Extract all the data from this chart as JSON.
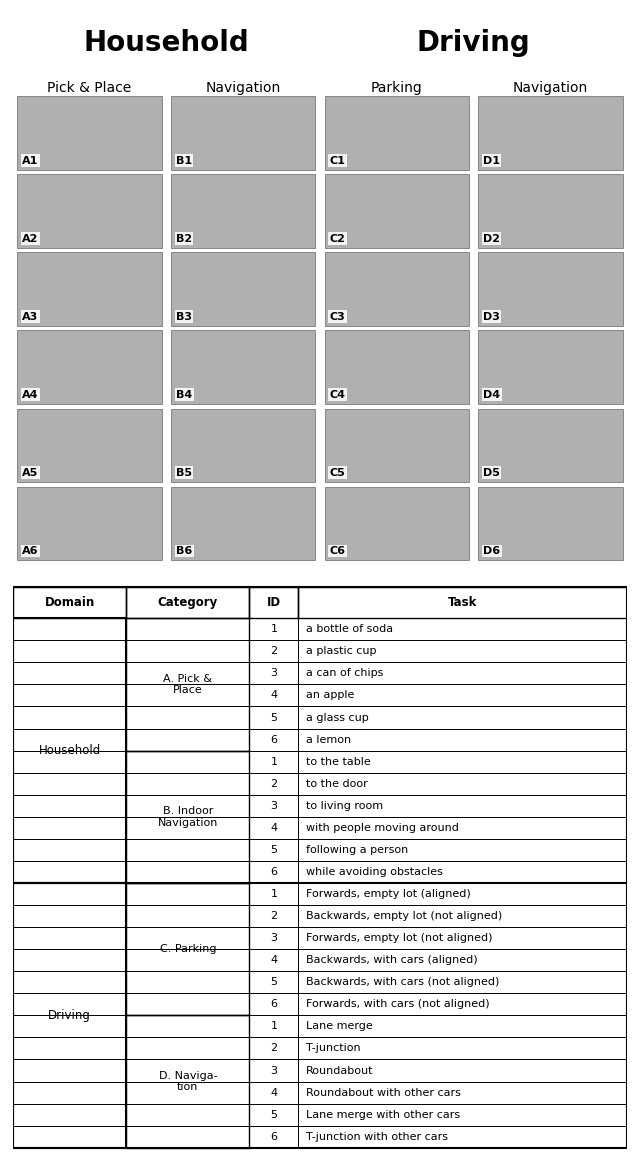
{
  "title_household": "Household",
  "title_driving": "Driving",
  "col_headers": [
    "Pick & Place",
    "Navigation",
    "Parking",
    "Navigation"
  ],
  "img_labels": [
    [
      "A1",
      "B1",
      "C1",
      "D1"
    ],
    [
      "A2",
      "B2",
      "C2",
      "D2"
    ],
    [
      "A3",
      "B3",
      "C3",
      "D3"
    ],
    [
      "A4",
      "B4",
      "C4",
      "D4"
    ],
    [
      "A5",
      "B5",
      "C5",
      "D5"
    ],
    [
      "A6",
      "B6",
      "C6",
      "D6"
    ]
  ],
  "table_headers": [
    "Domain",
    "Category",
    "ID",
    "Task"
  ],
  "table_data": [
    [
      "Household",
      "A. Pick &\nPlace",
      "1",
      "a bottle of soda"
    ],
    [
      "",
      "",
      "2",
      "a plastic cup"
    ],
    [
      "",
      "",
      "3",
      "a can of chips"
    ],
    [
      "",
      "",
      "4",
      "an apple"
    ],
    [
      "",
      "",
      "5",
      "a glass cup"
    ],
    [
      "",
      "",
      "6",
      "a lemon"
    ],
    [
      "",
      "B. Indoor\nNavigation",
      "1",
      "to the table"
    ],
    [
      "",
      "",
      "2",
      "to the door"
    ],
    [
      "",
      "",
      "3",
      "to living room"
    ],
    [
      "",
      "",
      "4",
      "with people moving around"
    ],
    [
      "",
      "",
      "5",
      "following a person"
    ],
    [
      "",
      "",
      "6",
      "while avoiding obstacles"
    ],
    [
      "Driving",
      "C. Parking",
      "1",
      "Forwards, empty lot (aligned)"
    ],
    [
      "",
      "",
      "2",
      "Backwards, empty lot (not aligned)"
    ],
    [
      "",
      "",
      "3",
      "Forwards, empty lot (not aligned)"
    ],
    [
      "",
      "",
      "4",
      "Backwards, with cars (aligned)"
    ],
    [
      "",
      "",
      "5",
      "Backwards, with cars (not aligned)"
    ],
    [
      "",
      "",
      "6",
      "Forwards, with cars (not aligned)"
    ],
    [
      "",
      "D. Naviga-\ntion",
      "1",
      "Lane merge"
    ],
    [
      "",
      "",
      "2",
      "T-junction"
    ],
    [
      "",
      "",
      "3",
      "Roundabout"
    ],
    [
      "",
      "",
      "4",
      "Roundabout with other cars"
    ],
    [
      "",
      "",
      "5",
      "Lane merge with other cars"
    ],
    [
      "",
      "",
      "6",
      "T-junction with other cars"
    ]
  ],
  "domain_spans": [
    [
      "Household",
      0,
      11
    ],
    [
      "Driving",
      12,
      23
    ]
  ],
  "category_spans": [
    [
      "A. Pick &\nPlace",
      0,
      5
    ],
    [
      "B. Indoor\nNavigation",
      6,
      11
    ],
    [
      "C. Parking",
      12,
      17
    ],
    [
      "D. Naviga-\ntion",
      18,
      23
    ]
  ],
  "col_starts": [
    0.0,
    0.185,
    0.385,
    0.465
  ],
  "col_ends": [
    0.185,
    0.385,
    0.465,
    1.0
  ],
  "bg_color": "#ffffff",
  "text_color": "#000000"
}
